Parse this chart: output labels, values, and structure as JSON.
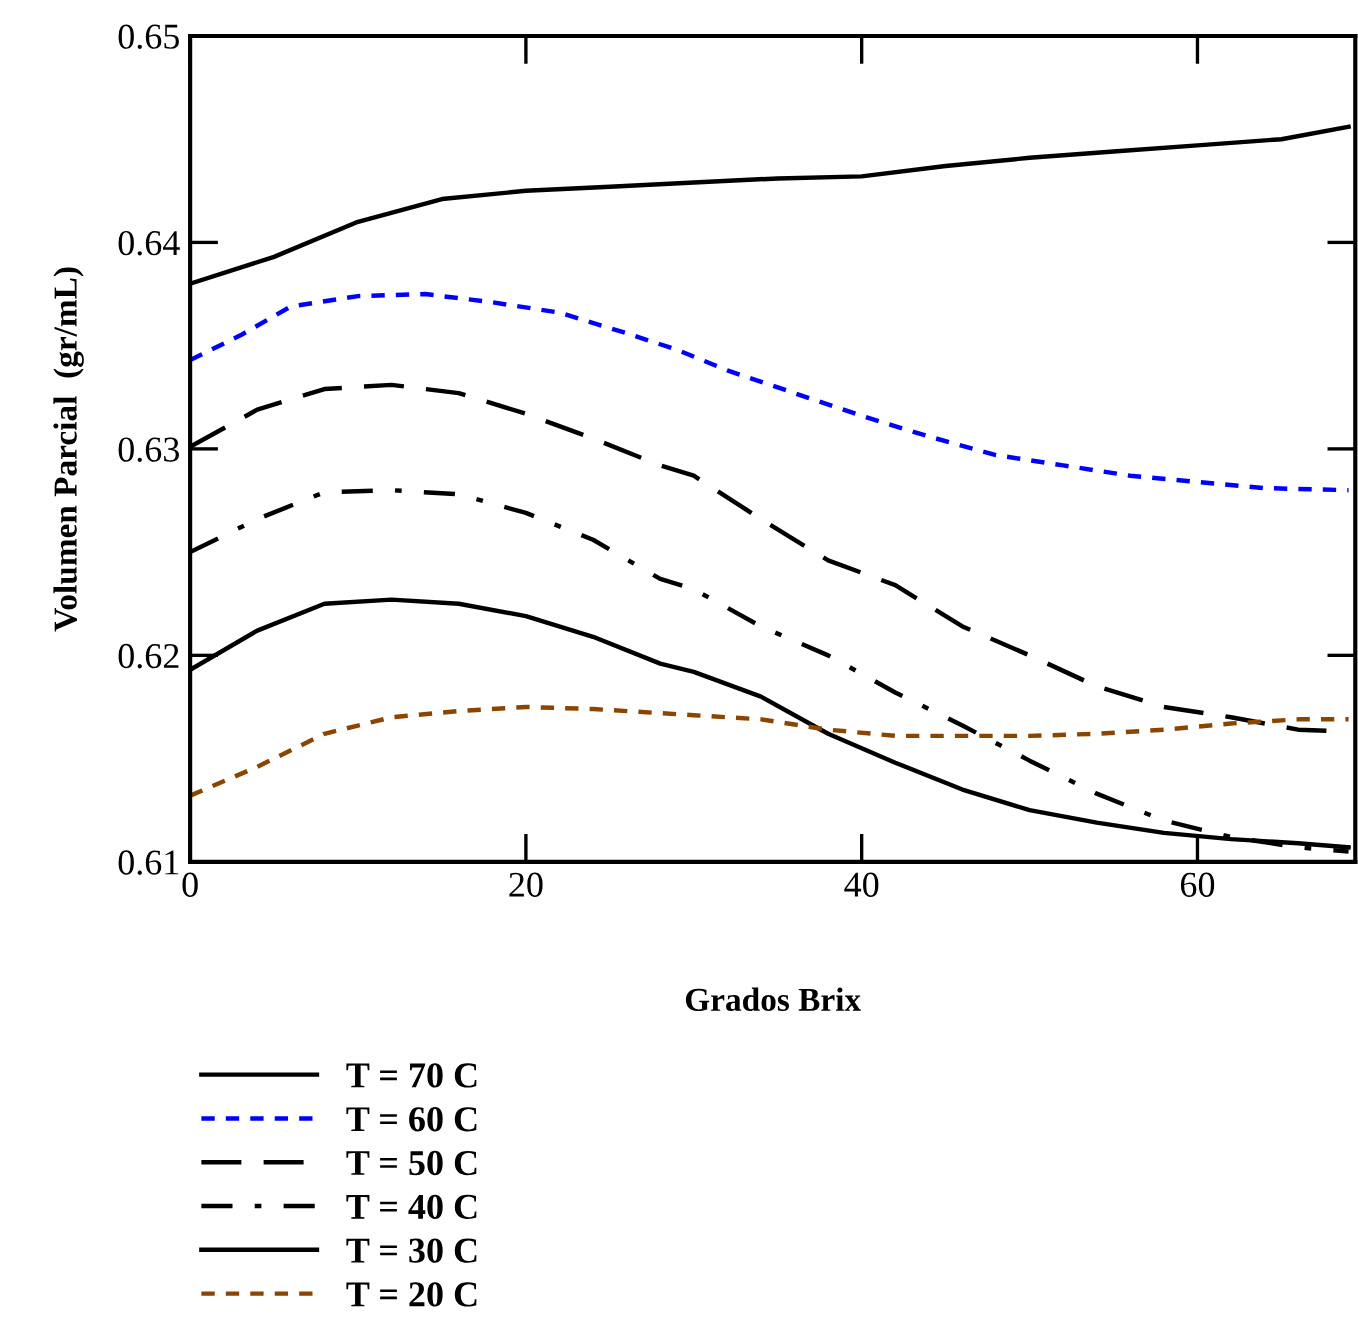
{
  "chart_data": {
    "type": "line",
    "xlabel": "Grados Brix",
    "ylabel": "Volumen Parcial  (gr/mL)",
    "xlim": [
      0,
      69.4
    ],
    "ylim": [
      0.61,
      0.65
    ],
    "xticks": [
      0,
      20,
      40,
      60
    ],
    "yticks": [
      0.61,
      0.62,
      0.63,
      0.64,
      0.65
    ],
    "grid": false,
    "legend": "bottom left",
    "series": [
      {
        "name": "T = 70 C",
        "color": "#000000",
        "line_style": "solid",
        "x": [
          0,
          5,
          10,
          15,
          20,
          25,
          30,
          35,
          40,
          45,
          50,
          55,
          60,
          65,
          69
        ],
        "values": [
          0.638,
          0.6393,
          0.641,
          0.6421,
          0.6425,
          0.6427,
          0.6429,
          0.6431,
          0.6432,
          0.6437,
          0.6441,
          0.6444,
          0.6447,
          0.645,
          0.6456
        ]
      },
      {
        "name": "T = 60 C",
        "color": "#0000ff",
        "line_style": "dashed",
        "x": [
          0,
          3,
          6,
          10,
          14,
          18,
          22,
          26,
          29,
          32,
          36,
          40,
          44,
          48,
          52,
          56,
          60,
          64,
          69
        ],
        "values": [
          0.6343,
          0.6355,
          0.6369,
          0.6374,
          0.6375,
          0.6371,
          0.6366,
          0.6356,
          0.6348,
          0.6338,
          0.6327,
          0.6316,
          0.6306,
          0.6297,
          0.6292,
          0.6287,
          0.6284,
          0.6281,
          0.628
        ]
      },
      {
        "name": "T = 50 C",
        "color": "#000000",
        "line_style": "longdash",
        "x": [
          0,
          4,
          8,
          12,
          16,
          20,
          24,
          28,
          30,
          34,
          38,
          42,
          46,
          50,
          54,
          58,
          62,
          66,
          69
        ],
        "values": [
          0.6301,
          0.6319,
          0.6329,
          0.6331,
          0.6327,
          0.6317,
          0.6305,
          0.6292,
          0.6287,
          0.6266,
          0.6246,
          0.6234,
          0.6214,
          0.62,
          0.6185,
          0.6175,
          0.617,
          0.6164,
          0.6163
        ]
      },
      {
        "name": "T = 40 C",
        "color": "#000000",
        "line_style": "dashdot",
        "x": [
          0,
          4,
          8,
          12,
          16,
          20,
          24,
          28,
          30,
          34,
          38,
          42,
          46,
          50,
          54,
          58,
          62,
          66,
          69
        ],
        "values": [
          0.625,
          0.6266,
          0.6279,
          0.628,
          0.6278,
          0.6269,
          0.6256,
          0.6237,
          0.6232,
          0.6214,
          0.62,
          0.6182,
          0.6166,
          0.6149,
          0.6133,
          0.612,
          0.6112,
          0.6107,
          0.6105
        ]
      },
      {
        "name": "T = 30 C",
        "color": "#000000",
        "line_style": "solid",
        "x": [
          0,
          4,
          8,
          12,
          16,
          20,
          24,
          28,
          30,
          34,
          38,
          42,
          46,
          50,
          54,
          58,
          62,
          66,
          69
        ],
        "values": [
          0.6193,
          0.6212,
          0.6225,
          0.6227,
          0.6225,
          0.6219,
          0.6209,
          0.6196,
          0.6192,
          0.618,
          0.6162,
          0.6148,
          0.6135,
          0.6125,
          0.6119,
          0.6114,
          0.6111,
          0.6109,
          0.6107
        ]
      },
      {
        "name": "T = 20 C",
        "color": "#8b4500",
        "line_style": "dashed",
        "x": [
          0,
          4,
          8,
          12,
          16,
          20,
          24,
          28,
          30,
          34,
          38,
          42,
          46,
          50,
          54,
          58,
          62,
          66,
          69
        ],
        "values": [
          0.6132,
          0.6146,
          0.6162,
          0.617,
          0.6173,
          0.6175,
          0.6174,
          0.6172,
          0.6171,
          0.6169,
          0.6164,
          0.6161,
          0.6161,
          0.6161,
          0.6162,
          0.6164,
          0.6167,
          0.6169,
          0.6169
        ]
      }
    ]
  }
}
